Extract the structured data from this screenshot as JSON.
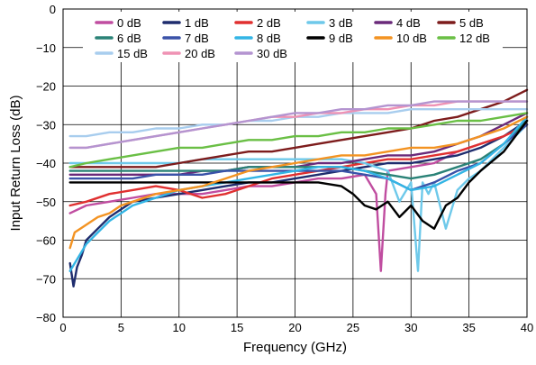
{
  "chart_data": {
    "type": "line",
    "title": "",
    "xlabel": "Frequency (GHz)",
    "ylabel": "Input Return Loss (dB)",
    "xlim": [
      0,
      40
    ],
    "ylim": [
      -80,
      0
    ],
    "x_ticks": [
      0,
      5,
      10,
      15,
      20,
      25,
      30,
      35,
      40
    ],
    "y_ticks": [
      0,
      -10,
      -20,
      -30,
      -40,
      -50,
      -60,
      -70,
      -80
    ],
    "grid": true,
    "legend_position": "top",
    "series": [
      {
        "name": "0 dB",
        "color": "#c04da0",
        "x": [
          0.6,
          2,
          4,
          6,
          8,
          10,
          12,
          14,
          16,
          18,
          20,
          22,
          24,
          26,
          27,
          27.4,
          27.8,
          28,
          30,
          32,
          34,
          36,
          38,
          40
        ],
        "y": [
          -53,
          -51,
          -50,
          -49,
          -48,
          -48,
          -48,
          -47,
          -46,
          -46,
          -45,
          -44,
          -44,
          -43,
          -48,
          -68,
          -48,
          -42,
          -41,
          -40,
          -37,
          -35,
          -33,
          -30
        ]
      },
      {
        "name": "1 dB",
        "color": "#1f2d6e",
        "x": [
          0.6,
          0.9,
          1.2,
          1.6,
          2,
          3,
          4,
          5,
          6,
          8,
          10,
          12,
          14,
          16,
          18,
          20,
          22,
          24,
          26,
          28,
          30,
          32,
          34,
          36,
          38,
          40
        ],
        "y": [
          -66,
          -72,
          -67,
          -64,
          -60,
          -57,
          -54,
          -52,
          -50,
          -49,
          -48,
          -47,
          -46,
          -45,
          -45,
          -44,
          -43,
          -42,
          -41,
          -40,
          -40,
          -39,
          -38,
          -36,
          -33,
          -29
        ]
      },
      {
        "name": "2 dB",
        "color": "#e03030",
        "x": [
          0.6,
          2,
          4,
          6,
          8,
          10,
          12,
          14,
          16,
          18,
          20,
          22,
          24,
          26,
          28,
          30,
          32,
          34,
          36,
          38,
          40
        ],
        "y": [
          -51,
          -50,
          -48,
          -47,
          -46,
          -47,
          -49,
          -48,
          -46,
          -44,
          -43,
          -42,
          -41,
          -40,
          -39,
          -39,
          -38,
          -37,
          -35,
          -33,
          -30
        ]
      },
      {
        "name": "3 dB",
        "color": "#6ec9ea",
        "x": [
          0.6,
          2,
          4,
          6,
          8,
          10,
          12,
          14,
          16,
          18,
          20,
          22,
          24,
          26,
          28,
          29,
          30,
          30.6,
          31,
          31.5,
          32,
          33,
          34,
          35,
          36,
          38,
          40
        ],
        "y": [
          -40,
          -40,
          -40,
          -40,
          -40,
          -40,
          -39,
          -39,
          -39,
          -39,
          -39,
          -39,
          -39,
          -40,
          -42,
          -50,
          -45,
          -68,
          -45,
          -48,
          -45,
          -57,
          -47,
          -44,
          -42,
          -36,
          -30
        ]
      },
      {
        "name": "4 dB",
        "color": "#6a2a7a",
        "x": [
          0.6,
          2,
          4,
          6,
          8,
          10,
          12,
          14,
          16,
          18,
          20,
          22,
          24,
          26,
          28,
          30,
          32,
          34,
          36,
          38,
          40
        ],
        "y": [
          -43,
          -43,
          -43,
          -43,
          -43,
          -43,
          -42,
          -42,
          -41,
          -41,
          -41,
          -40,
          -40,
          -39,
          -38,
          -38,
          -37,
          -35,
          -33,
          -30,
          -27
        ]
      },
      {
        "name": "5 dB",
        "color": "#7d1c1c",
        "x": [
          0.6,
          2,
          4,
          6,
          8,
          10,
          12,
          14,
          16,
          18,
          20,
          22,
          24,
          26,
          28,
          30,
          32,
          34,
          36,
          38,
          40
        ],
        "y": [
          -41,
          -41,
          -41,
          -41,
          -41,
          -40,
          -39,
          -38,
          -37,
          -37,
          -36,
          -35,
          -34,
          -33,
          -32,
          -31,
          -29,
          -28,
          -26,
          -24,
          -21
        ]
      },
      {
        "name": "6 dB",
        "color": "#2a8277",
        "x": [
          0.6,
          2,
          4,
          6,
          8,
          10,
          12,
          14,
          16,
          18,
          20,
          22,
          24,
          26,
          28,
          30,
          32,
          34,
          36,
          38,
          40
        ],
        "y": [
          -42,
          -42,
          -42,
          -42,
          -42,
          -42,
          -42,
          -42,
          -41,
          -41,
          -41,
          -41,
          -41,
          -42,
          -43,
          -44,
          -43,
          -41,
          -39,
          -35,
          -29
        ]
      },
      {
        "name": "7 dB",
        "color": "#3a52a8",
        "x": [
          0.6,
          2,
          4,
          6,
          8,
          10,
          12,
          14,
          16,
          18,
          20,
          22,
          24,
          26,
          28,
          30,
          32,
          34,
          36,
          38,
          40
        ],
        "y": [
          -44,
          -44,
          -44,
          -44,
          -43,
          -43,
          -43,
          -42,
          -42,
          -42,
          -42,
          -42,
          -42,
          -43,
          -44,
          -47,
          -45,
          -42,
          -40,
          -35,
          -30
        ]
      },
      {
        "name": "8 dB",
        "color": "#33b5e5",
        "x": [
          0.6,
          1.2,
          2,
          3,
          4,
          5,
          6,
          8,
          10,
          12,
          14,
          16,
          18,
          20,
          22,
          24,
          26,
          28,
          30,
          32,
          34,
          36,
          38,
          40
        ],
        "y": [
          -68,
          -65,
          -61,
          -58,
          -55,
          -53,
          -51,
          -49,
          -47,
          -46,
          -45,
          -44,
          -43,
          -42,
          -41,
          -41,
          -42,
          -44,
          -47,
          -46,
          -43,
          -40,
          -35,
          -28
        ]
      },
      {
        "name": "9 dB",
        "color": "#000000",
        "x": [
          0.6,
          2,
          4,
          6,
          8,
          10,
          12,
          14,
          16,
          18,
          20,
          22,
          24,
          25,
          26,
          27,
          28,
          29,
          30,
          31,
          32,
          33,
          34,
          35,
          36,
          38,
          40
        ],
        "y": [
          -45,
          -45,
          -45,
          -45,
          -45,
          -45,
          -45,
          -45,
          -45,
          -45,
          -45,
          -45,
          -46,
          -48,
          -51,
          -52,
          -50,
          -54,
          -51,
          -55,
          -57,
          -51,
          -49,
          -45,
          -42,
          -37,
          -29
        ]
      },
      {
        "name": "10 dB",
        "color": "#f39322",
        "x": [
          0.6,
          1,
          2,
          3,
          4,
          5,
          6,
          8,
          10,
          12,
          14,
          16,
          18,
          20,
          22,
          24,
          26,
          28,
          30,
          32,
          34,
          36,
          38,
          40
        ],
        "y": [
          -62,
          -58,
          -56,
          -54,
          -53,
          -51,
          -50,
          -48,
          -47,
          -46,
          -44,
          -42,
          -41,
          -40,
          -39,
          -38,
          -38,
          -37,
          -36,
          -36,
          -35,
          -33,
          -31,
          -28
        ]
      },
      {
        "name": "12 dB",
        "color": "#6abf45",
        "x": [
          0.6,
          2,
          4,
          6,
          8,
          10,
          12,
          14,
          16,
          18,
          20,
          22,
          24,
          26,
          28,
          30,
          32,
          34,
          36,
          38,
          40
        ],
        "y": [
          -41,
          -40,
          -39,
          -38,
          -37,
          -36,
          -36,
          -35,
          -34,
          -34,
          -33,
          -33,
          -32,
          -32,
          -31,
          -31,
          -30,
          -29,
          -29,
          -28,
          -27
        ]
      },
      {
        "name": "15 dB",
        "color": "#a8cdee",
        "x": [
          0.6,
          2,
          4,
          6,
          8,
          10,
          12,
          14,
          16,
          18,
          20,
          22,
          24,
          26,
          28,
          30,
          32,
          34,
          36,
          38,
          40
        ],
        "y": [
          -33,
          -33,
          -32,
          -32,
          -31,
          -31,
          -30,
          -30,
          -29,
          -29,
          -28,
          -28,
          -27,
          -27,
          -27,
          -26,
          -26,
          -26,
          -26,
          -26,
          -26
        ]
      },
      {
        "name": "20 dB",
        "color": "#ef92b4",
        "x": [
          0.6,
          2,
          4,
          6,
          8,
          10,
          12,
          14,
          16,
          18,
          20,
          22,
          24,
          26,
          28,
          30,
          32,
          34,
          36,
          38,
          40
        ],
        "y": [
          -36,
          -36,
          -35,
          -34,
          -33,
          -32,
          -31,
          -30,
          -29,
          -28,
          -28,
          -27,
          -27,
          -26,
          -26,
          -25,
          -25,
          -24,
          -24,
          -24,
          -24
        ]
      },
      {
        "name": "30 dB",
        "color": "#b494d0",
        "x": [
          0.6,
          2,
          4,
          6,
          8,
          10,
          12,
          14,
          16,
          18,
          20,
          22,
          24,
          26,
          28,
          30,
          32,
          34,
          36,
          38,
          40
        ],
        "y": [
          -36,
          -36,
          -35,
          -34,
          -33,
          -32,
          -31,
          -30,
          -29,
          -28,
          -27,
          -27,
          -26,
          -26,
          -25,
          -25,
          -24,
          -24,
          -24,
          -24,
          -24
        ]
      }
    ]
  }
}
